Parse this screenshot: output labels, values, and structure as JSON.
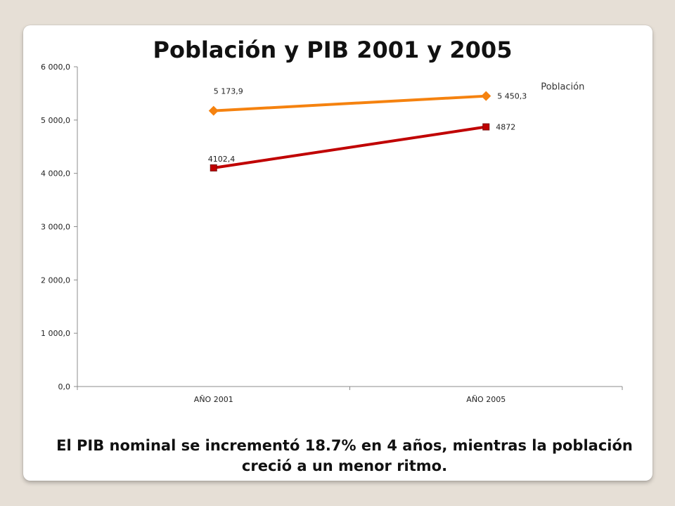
{
  "slide": {
    "caption": "El PIB nominal se incrementó 18.7% en 4 años, mientras la población creció a un menor ritmo."
  },
  "chart_data": {
    "type": "line",
    "title": "Población y PIB 2001 y 2005",
    "categories": [
      "AÑO 2001",
      "AÑO 2005"
    ],
    "ylim": [
      0,
      6000
    ],
    "yticks": [
      0,
      1000,
      2000,
      3000,
      4000,
      5000,
      6000
    ],
    "ytick_labels": [
      "0,0",
      "1 000,0",
      "2 000,0",
      "3 000,0",
      "4 000,0",
      "5 000,0",
      "6 000,0"
    ],
    "grid": false,
    "series": [
      {
        "name": "Población",
        "values": [
          5173.9,
          5450.3
        ],
        "labels": [
          "5 173,9",
          "5 450,3"
        ],
        "color": "#f5820f",
        "marker": "diamond"
      },
      {
        "values": [
          4102.4,
          4872
        ],
        "labels": [
          "4102,4",
          "4872"
        ],
        "color": "#c00000",
        "marker": "square"
      }
    ]
  }
}
